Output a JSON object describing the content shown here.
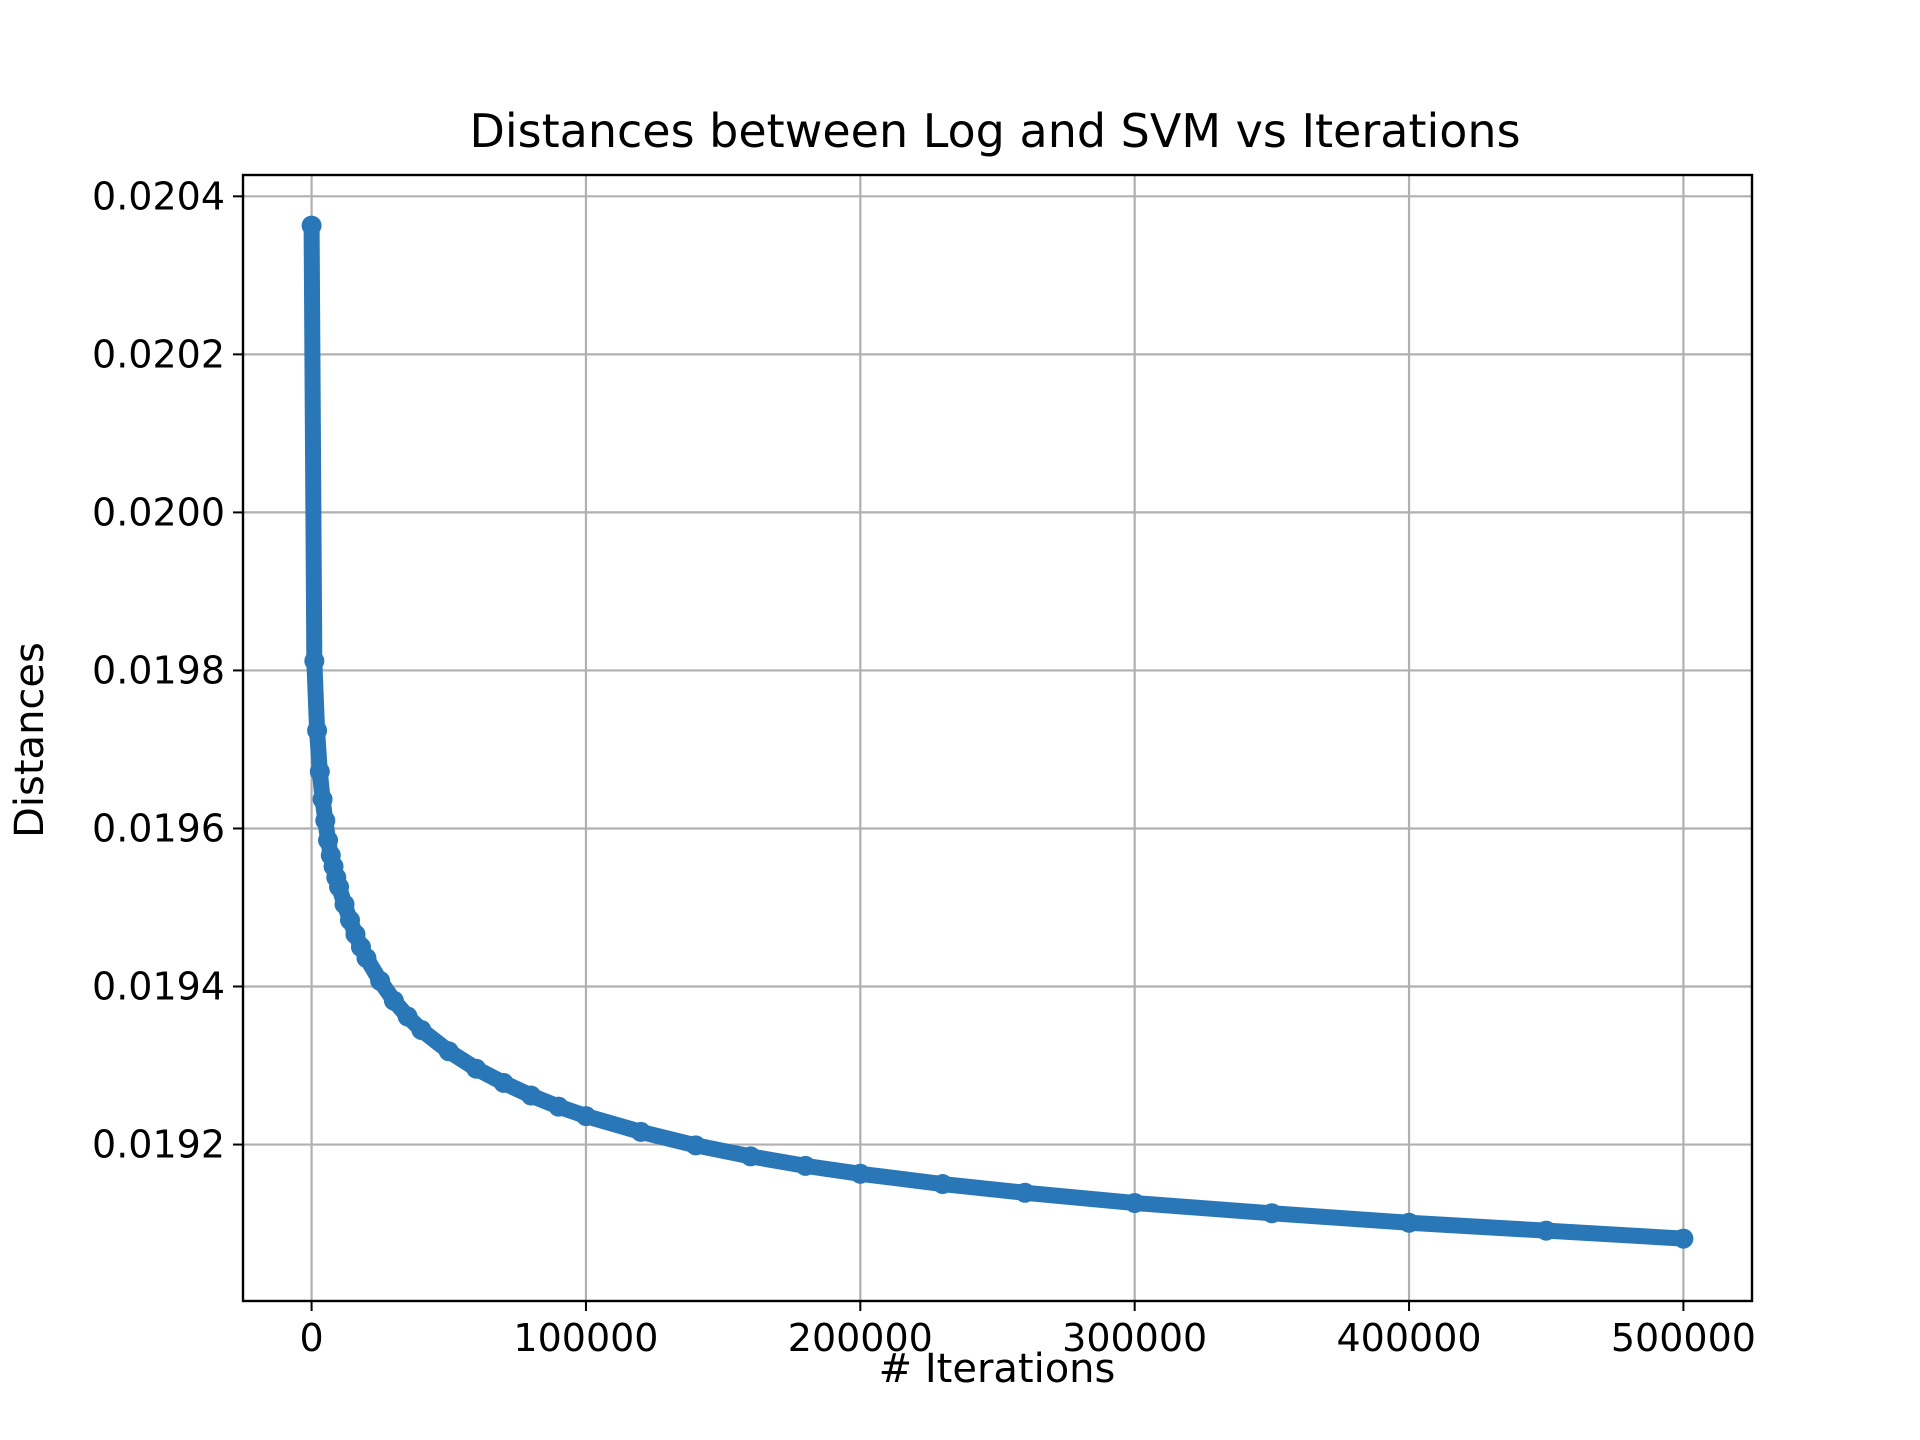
{
  "chart_data": {
    "type": "line",
    "title": "Distances between Log and SVM vs Iterations",
    "xlabel": "# Iterations",
    "ylabel": "Distances",
    "xlim": [
      -25000,
      525000
    ],
    "ylim": [
      0.019002,
      0.020427
    ],
    "x_ticks": [
      0,
      100000,
      200000,
      300000,
      400000,
      500000
    ],
    "x_tick_labels": [
      "0",
      "100000",
      "200000",
      "300000",
      "400000",
      "500000"
    ],
    "y_ticks": [
      0.0192,
      0.0194,
      0.0196,
      0.0198,
      0.02,
      0.0202,
      0.0204
    ],
    "y_tick_labels": [
      "0.0192",
      "0.0194",
      "0.0196",
      "0.0198",
      "0.0200",
      "0.0202",
      "0.0204"
    ],
    "grid": true,
    "legend": "none",
    "colors": {
      "series": "#2a77b7",
      "grid": "#b0b0b0",
      "axes": "#000000"
    },
    "series": [
      {
        "marker": "circle",
        "x": [
          0,
          1000,
          2000,
          3000,
          4000,
          5000,
          6000,
          7000,
          8000,
          9000,
          10000,
          12000,
          14000,
          16000,
          18000,
          20000,
          25000,
          30000,
          35000,
          40000,
          50000,
          60000,
          70000,
          80000,
          90000,
          100000,
          120000,
          140000,
          160000,
          180000,
          200000,
          230000,
          260000,
          300000,
          350000,
          400000,
          450000,
          500000
        ],
        "y": [
          0.020363,
          0.019812,
          0.019724,
          0.019672,
          0.019637,
          0.01961,
          0.019585,
          0.019566,
          0.019552,
          0.019538,
          0.019526,
          0.019504,
          0.019484,
          0.019466,
          0.01945,
          0.019436,
          0.019407,
          0.019382,
          0.019362,
          0.019345,
          0.019318,
          0.019296,
          0.019278,
          0.019262,
          0.019248,
          0.019236,
          0.019216,
          0.019199,
          0.019185,
          0.019173,
          0.019163,
          0.01915,
          0.019139,
          0.019126,
          0.019113,
          0.019101,
          0.019091,
          0.019081
        ]
      }
    ]
  }
}
